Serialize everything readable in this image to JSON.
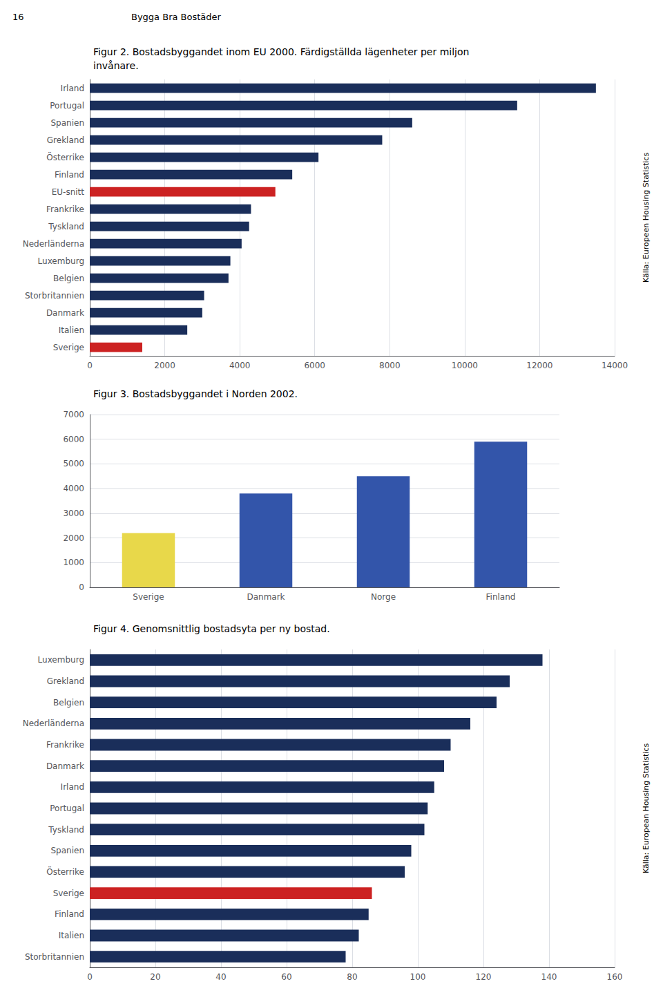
{
  "page_number": "16",
  "page_title": "Bygga Bra Bostäder",
  "chart_data": [
    {
      "type": "bar",
      "orientation": "horizontal",
      "title": "Figur 2. Bostadsbyggandet inom EU 2000. Färdigställda lägenheter per miljon\ninvånare.",
      "categories": [
        "Irland",
        "Portugal",
        "Spanien",
        "Grekland",
        "Österrike",
        "Finland",
        "EU-snitt",
        "Frankrike",
        "Tyskland",
        "Nederländerna",
        "Luxemburg",
        "Belgien",
        "Storbritannien",
        "Danmark",
        "Italien",
        "Sverige"
      ],
      "values": [
        13500,
        11400,
        8600,
        7800,
        6100,
        5400,
        4950,
        4300,
        4250,
        4050,
        3750,
        3700,
        3050,
        3000,
        2600,
        1400
      ],
      "colors": [
        "#1a2e5a",
        "#1a2e5a",
        "#1a2e5a",
        "#1a2e5a",
        "#1a2e5a",
        "#1a2e5a",
        "#cc2222",
        "#1a2e5a",
        "#1a2e5a",
        "#1a2e5a",
        "#1a2e5a",
        "#1a2e5a",
        "#1a2e5a",
        "#1a2e5a",
        "#1a2e5a",
        "#cc2222"
      ],
      "xlim": [
        0,
        14000
      ],
      "xticks": [
        0,
        2000,
        4000,
        6000,
        8000,
        10000,
        12000,
        14000
      ],
      "grid": true,
      "annotations": [
        "Källa: Europeen Housing Statistics"
      ]
    },
    {
      "type": "bar",
      "title": "Figur 3. Bostadsbyggandet i Norden 2002.",
      "categories": [
        "Sverige",
        "Danmark",
        "Norge",
        "Finland"
      ],
      "values": [
        2200,
        3800,
        4500,
        5900
      ],
      "colors": [
        "#e8d84a",
        "#3355aa",
        "#3355aa",
        "#3355aa"
      ],
      "ylim": [
        0,
        7000
      ],
      "yticks": [
        0,
        1000,
        2000,
        3000,
        4000,
        5000,
        6000,
        7000
      ],
      "grid": true
    },
    {
      "type": "bar",
      "orientation": "horizontal",
      "title": "Figur 4. Genomsnittlig bostadsyta per ny bostad.",
      "categories": [
        "Luxemburg",
        "Grekland",
        "Belgien",
        "Nederländerna",
        "Frankrike",
        "Danmark",
        "Irland",
        "Portugal",
        "Tyskland",
        "Spanien",
        "Österrike",
        "Sverige",
        "Finland",
        "Italien",
        "Storbritannien"
      ],
      "values": [
        138,
        128,
        124,
        116,
        110,
        108,
        105,
        103,
        102,
        98,
        96,
        86,
        85,
        82,
        78
      ],
      "colors": [
        "#1a2e5a",
        "#1a2e5a",
        "#1a2e5a",
        "#1a2e5a",
        "#1a2e5a",
        "#1a2e5a",
        "#1a2e5a",
        "#1a2e5a",
        "#1a2e5a",
        "#1a2e5a",
        "#1a2e5a",
        "#cc2222",
        "#1a2e5a",
        "#1a2e5a",
        "#1a2e5a"
      ],
      "xlim": [
        0,
        160
      ],
      "xticks": [
        0,
        20,
        40,
        60,
        80,
        100,
        120,
        140,
        160
      ],
      "grid": true,
      "annotations": [
        "Källa: European Housing Statistics"
      ]
    }
  ]
}
